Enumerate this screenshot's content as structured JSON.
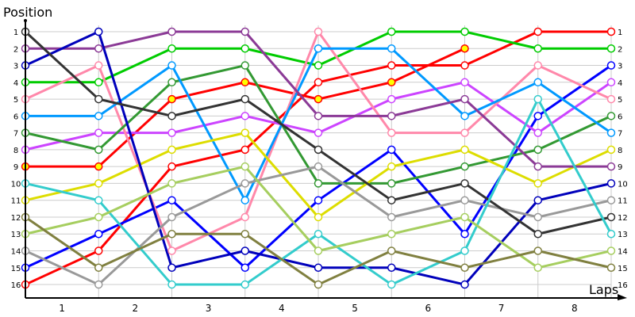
{
  "chart_data": {
    "type": "line",
    "ylabel": "Position",
    "xlabel": "Laps",
    "x_tick_labels": [
      "1",
      "2",
      "3",
      "4",
      "5",
      "6",
      "7",
      "8"
    ],
    "y_tick_labels": [
      "1",
      "2",
      "3",
      "4",
      "5",
      "6",
      "7",
      "8",
      "9",
      "10",
      "11",
      "12",
      "13",
      "14",
      "15",
      "16"
    ],
    "ylim": [
      1,
      16
    ],
    "y_inverted": true,
    "grid": true,
    "series": [
      {
        "color": "#FF0000",
        "marker_fill": "#FFFFFF",
        "values": [
          16,
          14,
          9,
          8,
          4,
          3,
          3,
          1,
          1
        ]
      },
      {
        "color": "#FF0000",
        "marker_fill": "#FFFF00",
        "values": [
          9,
          9,
          5,
          4,
          5,
          4,
          2
        ]
      },
      {
        "color": "#00CC00",
        "marker_fill": "#FFFFFF",
        "values": [
          4,
          4,
          2,
          2,
          3,
          1,
          1,
          2,
          2
        ]
      },
      {
        "color": "#0000FF",
        "marker_fill": "#FFFFFF",
        "values": [
          15,
          13,
          11,
          15,
          11,
          8,
          13,
          6,
          3
        ]
      },
      {
        "color": "#CC44FF",
        "marker_fill": "#FFFFFF",
        "values": [
          8,
          7,
          7,
          6,
          7,
          5,
          4,
          7,
          4
        ]
      },
      {
        "color": "#FF88AA",
        "marker_fill": "#FFFFFF",
        "values": [
          5,
          3,
          14,
          12,
          1,
          7,
          7,
          3,
          5
        ]
      },
      {
        "color": "#339933",
        "marker_fill": "#FFFFFF",
        "values": [
          7,
          8,
          4,
          3,
          10,
          10,
          9,
          8,
          6
        ]
      },
      {
        "color": "#0099FF",
        "marker_fill": "#FFFFFF",
        "values": [
          6,
          6,
          3,
          11,
          2,
          2,
          6,
          4,
          7
        ]
      },
      {
        "color": "#DDDD00",
        "marker_fill": "#FFFFFF",
        "values": [
          11,
          10,
          8,
          7,
          12,
          9,
          8,
          10,
          8
        ]
      },
      {
        "color": "#8B3A96",
        "marker_fill": "#FFFFFF",
        "values": [
          2,
          2,
          1,
          1,
          6,
          6,
          5,
          9,
          9
        ]
      },
      {
        "color": "#0000BB",
        "marker_fill": "#FFFFFF",
        "values": [
          3,
          1,
          15,
          14,
          15,
          15,
          16,
          11,
          10
        ]
      },
      {
        "color": "#999999",
        "marker_fill": "#FFFFFF",
        "values": [
          14,
          16,
          12,
          10,
          9,
          12,
          11,
          12,
          11
        ]
      },
      {
        "color": "#333333",
        "marker_fill": "#FFFFFF",
        "values": [
          1,
          5,
          6,
          5,
          8,
          11,
          10,
          13,
          12
        ]
      },
      {
        "color": "#33CCCC",
        "marker_fill": "#FFFFFF",
        "values": [
          10,
          11,
          16,
          16,
          13,
          16,
          14,
          5,
          13
        ]
      },
      {
        "color": "#A6CE5F",
        "marker_fill": "#FFFFFF",
        "values": [
          13,
          12,
          10,
          9,
          14,
          13,
          12,
          15,
          14
        ]
      },
      {
        "color": "#808040",
        "marker_fill": "#FFFFFF",
        "values": [
          12,
          15,
          13,
          13,
          16,
          14,
          15,
          14,
          15
        ]
      }
    ]
  }
}
